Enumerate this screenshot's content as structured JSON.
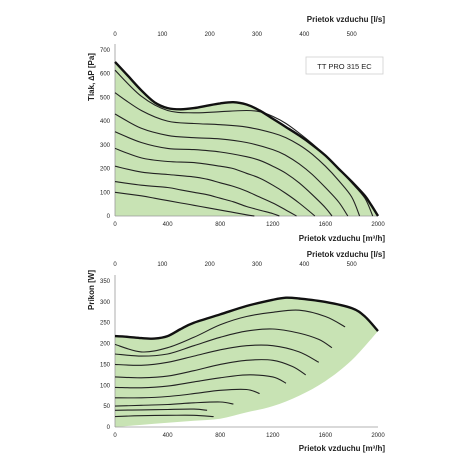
{
  "colors": {
    "fill": "#c8e3b4",
    "curve": "#222222",
    "envelope": "#111111",
    "axis": "#9a9a9a",
    "text": "#222222"
  },
  "chart_data": [
    {
      "type": "area",
      "name": "pressure",
      "model_label": "TT PRO 315 EC",
      "xlabel": "Prietok vzduchu [m³/h]",
      "x2label": "Prietok vzduchu [l/s]",
      "ylabel": "Tlak, ∆P [Pa]",
      "xlim": [
        0,
        2000
      ],
      "ylim": [
        0,
        700
      ],
      "x2lim": [
        0,
        555.6
      ],
      "xticks": [
        "0",
        "400",
        "800",
        "1200",
        "1600",
        "2000"
      ],
      "x2ticks": [
        "0",
        "100",
        "200",
        "300",
        "400",
        "500"
      ],
      "yticks": [
        "0",
        "100",
        "200",
        "300",
        "400",
        "500",
        "600",
        "700"
      ],
      "envelope": {
        "x": [
          0,
          100,
          200,
          300,
          400,
          500,
          600,
          700,
          800,
          900,
          1000,
          1100,
          1200,
          1300,
          1400,
          1500,
          1600,
          1700,
          1800,
          1900,
          1950,
          2000
        ],
        "y": [
          650,
          590,
          530,
          480,
          455,
          450,
          455,
          465,
          475,
          480,
          470,
          445,
          410,
          375,
          340,
          300,
          255,
          200,
          145,
          85,
          45,
          0
        ]
      },
      "speed_curves": [
        {
          "x": [
            0,
            200,
            400,
            600,
            800,
            1000,
            1100,
            1200,
            1300,
            1400,
            1500,
            1600,
            1700,
            1800,
            1900,
            1960
          ],
          "y": [
            615,
            505,
            445,
            435,
            440,
            445,
            440,
            420,
            390,
            350,
            305,
            255,
            200,
            140,
            75,
            0
          ]
        },
        {
          "x": [
            0,
            200,
            400,
            600,
            800,
            1000,
            1200,
            1300,
            1400,
            1500,
            1600,
            1700,
            1800,
            1860
          ],
          "y": [
            520,
            445,
            400,
            390,
            385,
            375,
            350,
            330,
            300,
            260,
            210,
            150,
            80,
            0
          ]
        },
        {
          "x": [
            0,
            200,
            400,
            600,
            800,
            1000,
            1200,
            1300,
            1400,
            1500,
            1600,
            1700,
            1770
          ],
          "y": [
            430,
            370,
            340,
            330,
            325,
            310,
            280,
            255,
            220,
            175,
            120,
            60,
            0
          ]
        },
        {
          "x": [
            0,
            200,
            400,
            600,
            800,
            1000,
            1100,
            1200,
            1300,
            1400,
            1500,
            1600,
            1650
          ],
          "y": [
            355,
            310,
            285,
            280,
            270,
            250,
            235,
            210,
            180,
            140,
            90,
            35,
            0
          ]
        },
        {
          "x": [
            0,
            200,
            400,
            600,
            800,
            900,
            1000,
            1100,
            1200,
            1300,
            1400,
            1520
          ],
          "y": [
            285,
            245,
            230,
            225,
            210,
            200,
            180,
            160,
            130,
            95,
            55,
            0
          ]
        },
        {
          "x": [
            0,
            200,
            400,
            600,
            700,
            800,
            900,
            1000,
            1100,
            1200,
            1300,
            1380
          ],
          "y": [
            210,
            185,
            175,
            165,
            155,
            140,
            125,
            105,
            80,
            55,
            25,
            0
          ]
        },
        {
          "x": [
            0,
            200,
            400,
            500,
            600,
            700,
            800,
            900,
            1000,
            1100,
            1200,
            1250
          ],
          "y": [
            145,
            130,
            120,
            110,
            100,
            90,
            75,
            60,
            40,
            25,
            10,
            0
          ]
        },
        {
          "x": [
            0,
            200,
            300,
            400,
            500,
            600,
            700,
            800,
            900,
            1000,
            1060
          ],
          "y": [
            100,
            85,
            75,
            65,
            55,
            45,
            35,
            25,
            15,
            5,
            0
          ]
        }
      ]
    },
    {
      "type": "area",
      "name": "power",
      "xlabel": "Prietok vzduchu [m³/h]",
      "x2label": "Prietok vzduchu [l/s]",
      "ylabel": "Príkon [W]",
      "xlim": [
        0,
        2000
      ],
      "ylim": [
        0,
        350
      ],
      "x2lim": [
        0,
        555.6
      ],
      "xticks": [
        "0",
        "400",
        "800",
        "1200",
        "1600",
        "2000"
      ],
      "x2ticks": [
        "0",
        "100",
        "200",
        "300",
        "400",
        "500"
      ],
      "yticks": [
        "0",
        "50",
        "100",
        "150",
        "200",
        "250",
        "300",
        "350"
      ],
      "envelope_top": {
        "x": [
          0,
          100,
          200,
          300,
          400,
          500,
          600,
          800,
          1000,
          1200,
          1300,
          1400,
          1600,
          1800,
          1900,
          2000
        ],
        "y": [
          218,
          216,
          213,
          212,
          218,
          235,
          250,
          270,
          290,
          305,
          310,
          308,
          300,
          285,
          265,
          230
        ]
      },
      "envelope_bottom": {
        "x": [
          0,
          200,
          400,
          600,
          800,
          1000,
          1200,
          1400,
          1600,
          1800,
          2000
        ],
        "y": [
          0,
          5,
          10,
          15,
          20,
          35,
          50,
          75,
          110,
          160,
          230
        ]
      },
      "speed_curves": [
        {
          "x": [
            0,
            200,
            400,
            600,
            800,
            1000,
            1200,
            1400,
            1600,
            1750
          ],
          "y": [
            198,
            180,
            190,
            215,
            245,
            265,
            275,
            280,
            265,
            240
          ]
        },
        {
          "x": [
            0,
            200,
            400,
            600,
            800,
            1000,
            1200,
            1400,
            1550,
            1650
          ],
          "y": [
            175,
            170,
            175,
            195,
            215,
            230,
            235,
            225,
            210,
            190
          ]
        },
        {
          "x": [
            0,
            200,
            400,
            600,
            800,
            1000,
            1200,
            1400,
            1550
          ],
          "y": [
            150,
            148,
            155,
            170,
            185,
            195,
            195,
            180,
            155
          ]
        },
        {
          "x": [
            0,
            200,
            400,
            600,
            800,
            1000,
            1200,
            1350,
            1450
          ],
          "y": [
            120,
            118,
            122,
            135,
            150,
            160,
            160,
            145,
            125
          ]
        },
        {
          "x": [
            0,
            200,
            400,
            600,
            800,
            1000,
            1200,
            1300
          ],
          "y": [
            95,
            94,
            98,
            108,
            118,
            125,
            120,
            105
          ]
        },
        {
          "x": [
            0,
            200,
            400,
            600,
            800,
            1000,
            1100
          ],
          "y": [
            70,
            70,
            73,
            80,
            88,
            90,
            80
          ]
        },
        {
          "x": [
            0,
            200,
            400,
            600,
            800,
            900
          ],
          "y": [
            50,
            52,
            54,
            58,
            60,
            55
          ]
        },
        {
          "x": [
            0,
            200,
            400,
            600,
            700
          ],
          "y": [
            40,
            41,
            42,
            43,
            40
          ]
        },
        {
          "x": [
            0,
            200,
            400,
            600,
            750
          ],
          "y": [
            25,
            27,
            28,
            28,
            25
          ]
        }
      ]
    }
  ]
}
